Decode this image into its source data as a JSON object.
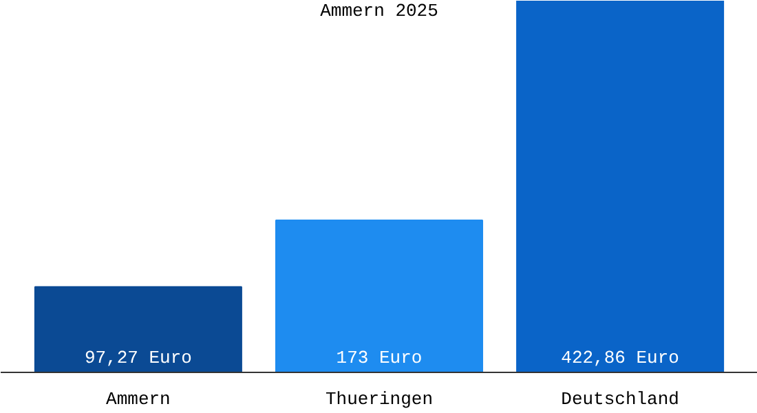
{
  "chart_data": {
    "type": "bar",
    "title": "Ammern 2025",
    "categories": [
      "Ammern",
      "Thueringen",
      "Deutschland"
    ],
    "values": [
      97.27,
      173,
      422.86
    ],
    "colors": [
      "#0b4a94",
      "#1e8cf0",
      "#0a64c8"
    ],
    "value_labels": [
      "97,27 Euro",
      "173 Euro",
      "422,86 Euro"
    ],
    "grid": false
  }
}
